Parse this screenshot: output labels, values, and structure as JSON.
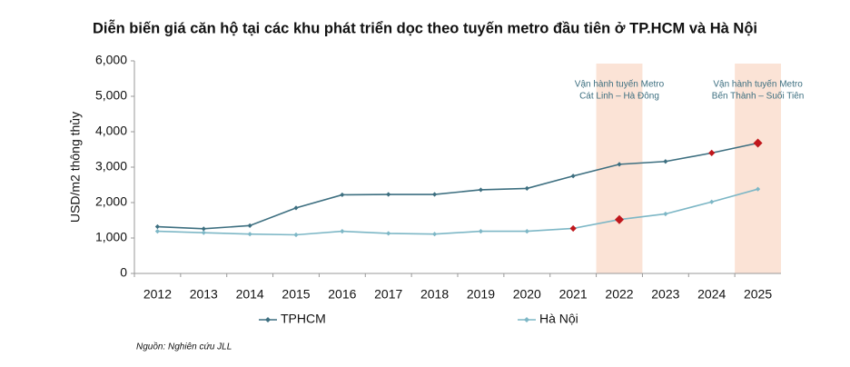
{
  "chart_data": {
    "type": "line",
    "title": "Diễn biến giá căn hộ tại các khu phát triển dọc theo tuyến metro đầu tiên ở TP.HCM và Hà Nội",
    "y_label": "USD/m2 thông thủy",
    "source": "Nguồn: Nghiên cứu JLL",
    "categories": [
      "2012",
      "2013",
      "2014",
      "2015",
      "2016",
      "2017",
      "2018",
      "2019",
      "2020",
      "2021",
      "2022",
      "2023",
      "2024",
      "2025"
    ],
    "series": [
      {
        "name": "TPHCM",
        "color": "#3d6f80",
        "values": [
          1320,
          1260,
          1350,
          1850,
          2220,
          2230,
          2230,
          2360,
          2400,
          2750,
          3080,
          3160,
          3400,
          3680
        ],
        "marker_colors": [
          "#3d6f80",
          "#3d6f80",
          "#3d6f80",
          "#3d6f80",
          "#3d6f80",
          "#3d6f80",
          "#3d6f80",
          "#3d6f80",
          "#3d6f80",
          "#3d6f80",
          "#3d6f80",
          "#3d6f80",
          "#c0171c",
          "#c0171c"
        ]
      },
      {
        "name": "Hà Nội",
        "color": "#7db7c6",
        "values": [
          1190,
          1150,
          1110,
          1090,
          1190,
          1130,
          1110,
          1190,
          1190,
          1270,
          1520,
          1680,
          2020,
          2380
        ],
        "marker_colors": [
          "#7db7c6",
          "#7db7c6",
          "#7db7c6",
          "#7db7c6",
          "#7db7c6",
          "#7db7c6",
          "#7db7c6",
          "#7db7c6",
          "#7db7c6",
          "#c0171c",
          "#c0171c",
          "#7db7c6",
          "#7db7c6",
          "#7db7c6"
        ]
      }
    ],
    "ylim": [
      0,
      6000
    ],
    "yticks": [
      0,
      {
        "value": 1000,
        "label": "1,000"
      },
      {
        "value": 2000,
        "label": "2,000"
      },
      {
        "value": 3000,
        "label": "3,000"
      },
      {
        "value": 4000,
        "label": "4,000"
      },
      {
        "value": 5000,
        "label": "5,000"
      },
      {
        "value": 6000,
        "label": "6,000"
      }
    ],
    "annotations": [
      {
        "x": "2022",
        "color": "#fbe3d6",
        "lines": [
          "Vận hành tuyến Metro",
          "Cát Linh – Hà Đông"
        ]
      },
      {
        "x": "2025",
        "color": "#fbe3d6",
        "lines": [
          "Vận hành tuyến Metro",
          "Bến Thành – Suối Tiên"
        ]
      }
    ],
    "legend": "bottom"
  }
}
